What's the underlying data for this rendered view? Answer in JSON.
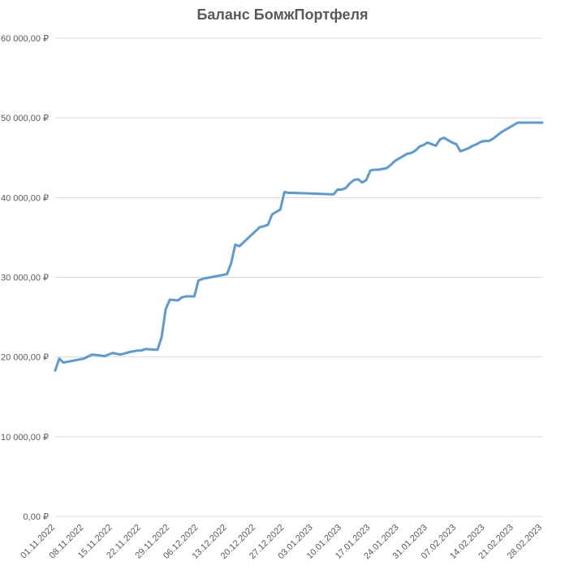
{
  "chart_data": {
    "type": "line",
    "title": "Баланс БомжПортфеля",
    "xlabel": "",
    "ylabel": "",
    "ylim": [
      0,
      60000
    ],
    "y_ticks": [
      0,
      10000,
      20000,
      30000,
      40000,
      50000,
      60000
    ],
    "y_tick_labels": [
      "0,00 ₽",
      "10 000,00 ₽",
      "20 000,00 ₽",
      "30 000,00 ₽",
      "40 000,00 ₽",
      "50 000,00 ₽",
      "60 000,00 ₽"
    ],
    "x_tick_labels": [
      "01.11.2022",
      "08.11.2022",
      "15.11.2022",
      "22.11.2022",
      "29.11.2022",
      "06.12.2022",
      "13.12.2022",
      "20.12.2022",
      "27.12.2022",
      "03.01.2023",
      "10.01.2023",
      "17.01.2023",
      "24.01.2023",
      "31.01.2023",
      "07.02.2023",
      "14.02.2023",
      "21.02.2023",
      "28.02.2023"
    ],
    "grid": true,
    "line_color": "#5b9bd5",
    "grid_color": "#d9d9d9",
    "series": [
      {
        "name": "Баланс",
        "x": [
          0,
          1,
          2,
          7,
          9,
          11,
          12,
          14,
          16,
          18,
          20,
          21,
          22,
          25,
          26,
          27,
          28,
          30,
          31,
          32,
          34,
          35,
          36,
          42,
          43,
          44,
          45,
          50,
          51,
          52,
          53,
          54,
          55,
          56,
          57,
          58,
          68,
          69,
          70,
          71,
          72,
          73,
          74,
          75,
          76,
          77,
          78,
          79,
          80,
          81,
          82,
          83,
          84,
          85,
          86,
          87,
          88,
          89,
          90,
          91,
          92,
          93,
          94,
          95,
          96,
          97,
          98,
          99,
          100,
          101,
          102,
          103,
          104,
          105,
          106,
          107,
          108,
          109,
          110,
          111,
          112,
          113,
          114,
          115,
          116,
          117,
          118,
          119
        ],
        "values": [
          18300,
          19800,
          19300,
          19800,
          20300,
          20200,
          20100,
          20500,
          20300,
          20600,
          20800,
          20800,
          21000,
          20900,
          22500,
          26000,
          27200,
          27100,
          27500,
          27600,
          27600,
          29600,
          29800,
          30400,
          31800,
          34100,
          33900,
          36300,
          36400,
          36600,
          37900,
          38200,
          38500,
          40700,
          40600,
          40600,
          40400,
          41000,
          41000,
          41200,
          41800,
          42200,
          42300,
          41900,
          42200,
          43400,
          43500,
          43500,
          43600,
          43700,
          44100,
          44600,
          44900,
          45200,
          45500,
          45600,
          45900,
          46400,
          46600,
          46900,
          46700,
          46500,
          47300,
          47500,
          47200,
          46900,
          46700,
          45800,
          46000,
          46200,
          46500,
          46700,
          47000,
          47100,
          47100,
          47400,
          47800,
          48200,
          48500,
          48800,
          49100,
          49400,
          49400,
          49400,
          49400,
          49400,
          49400,
          49400
        ]
      }
    ]
  }
}
